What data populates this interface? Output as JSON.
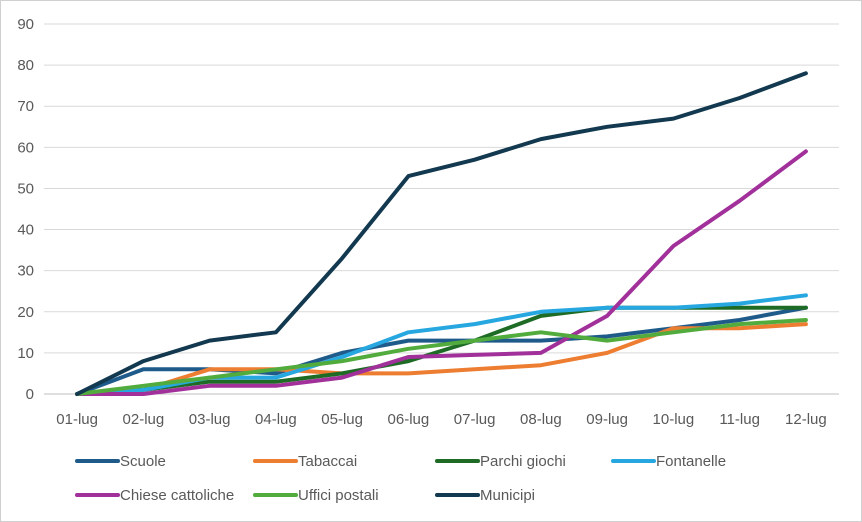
{
  "chart_data": {
    "type": "line",
    "categories": [
      "01-lug",
      "02-lug",
      "03-lug",
      "04-lug",
      "05-lug",
      "06-lug",
      "07-lug",
      "08-lug",
      "09-lug",
      "10-lug",
      "11-lug",
      "12-lug"
    ],
    "ylim": [
      0,
      90
    ],
    "yticks": [
      0,
      10,
      20,
      30,
      40,
      50,
      60,
      70,
      80,
      90
    ],
    "grid": true,
    "legend_position": "bottom",
    "series": [
      {
        "name": "Scuole",
        "color": "#1f5b8a",
        "values": [
          0,
          6,
          6,
          5,
          10,
          13,
          13,
          13,
          14,
          16,
          18,
          21
        ]
      },
      {
        "name": "Tabaccai",
        "color": "#ed7d31",
        "values": [
          0,
          1,
          6,
          6,
          5,
          5,
          6,
          7,
          10,
          16,
          16,
          17
        ]
      },
      {
        "name": "Parchi giochi",
        "color": "#1e6b25",
        "values": [
          0,
          1,
          3,
          3,
          5,
          8,
          13,
          19,
          21,
          21,
          21,
          21
        ]
      },
      {
        "name": "Fontanelle",
        "color": "#26a7e0",
        "values": [
          0,
          1,
          4,
          4,
          9,
          15,
          17,
          20,
          21,
          21,
          22,
          24
        ]
      },
      {
        "name": "Chiese cattoliche",
        "color": "#a1309a",
        "values": [
          0,
          0,
          2,
          2,
          4,
          9,
          9.5,
          10,
          19,
          36,
          47,
          59
        ]
      },
      {
        "name": "Uffici postali",
        "color": "#52ac3d",
        "values": [
          0,
          2,
          4,
          6,
          8,
          11,
          13,
          15,
          13,
          15,
          17,
          18
        ]
      },
      {
        "name": "Municipi",
        "color": "#12394f",
        "values": [
          0,
          8,
          13,
          15,
          33,
          53,
          57,
          62,
          65,
          67,
          72,
          78
        ]
      }
    ]
  }
}
